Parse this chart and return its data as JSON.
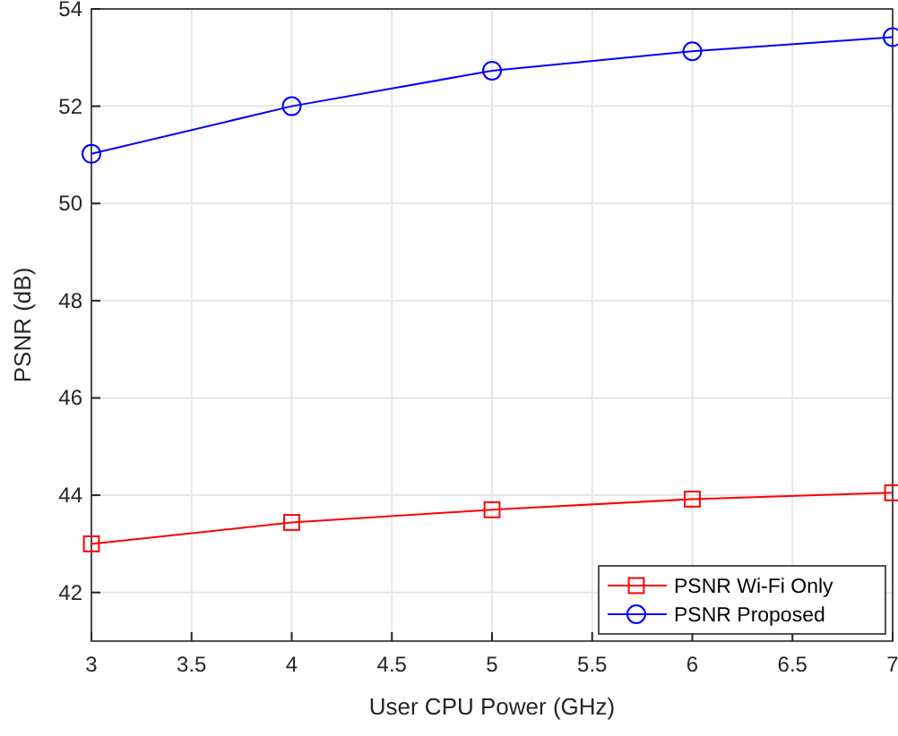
{
  "chart_data": {
    "type": "line",
    "xlabel": "User CPU Power (GHz)",
    "ylabel": "PSNR (dB)",
    "x": [
      3,
      4,
      5,
      6,
      7
    ],
    "series": [
      {
        "name": "PSNR Wi-Fi Only",
        "color": "#ff0000",
        "marker": "square",
        "values": [
          43.0,
          43.44,
          43.7,
          43.92,
          44.05
        ]
      },
      {
        "name": "PSNR Proposed",
        "color": "#0000ff",
        "marker": "circle",
        "values": [
          51.02,
          52.0,
          52.73,
          53.13,
          53.42
        ]
      }
    ],
    "xlim": [
      3,
      7
    ],
    "xticks": [
      3,
      {
        "value": 3.5,
        "label": "3.5"
      },
      4,
      {
        "value": 4.5,
        "label": "4.5"
      },
      5,
      {
        "value": 5.5,
        "label": "5.5"
      },
      6,
      {
        "value": 6.5,
        "label": "6.5"
      },
      7
    ],
    "ylim": [
      41,
      54
    ],
    "yticks": [
      42,
      44,
      46,
      48,
      50,
      52,
      54
    ],
    "grid": true,
    "legend": "bottom right",
    "line_style": "solid"
  }
}
